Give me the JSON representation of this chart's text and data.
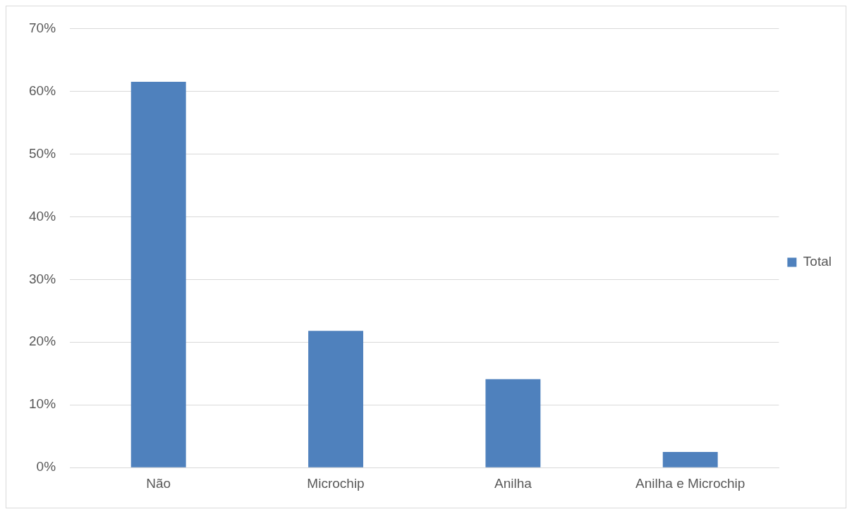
{
  "chart_data": {
    "type": "bar",
    "categories": [
      "Não",
      "Microchip",
      "Anilha",
      "Anilha e Microchip"
    ],
    "series": [
      {
        "name": "Total",
        "color": "#4f81bd",
        "values": [
          61.5,
          21.8,
          14.1,
          2.5
        ]
      }
    ],
    "ylim": [
      0,
      70
    ],
    "yticks": [
      {
        "value": 0,
        "label": "0%"
      },
      {
        "value": 10,
        "label": "10%"
      },
      {
        "value": 20,
        "label": "20%"
      },
      {
        "value": 30,
        "label": "30%"
      },
      {
        "value": 40,
        "label": "40%"
      },
      {
        "value": 50,
        "label": "50%"
      },
      {
        "value": 60,
        "label": "60%"
      },
      {
        "value": 70,
        "label": "70%"
      }
    ],
    "grid": "y",
    "legend": "right"
  }
}
